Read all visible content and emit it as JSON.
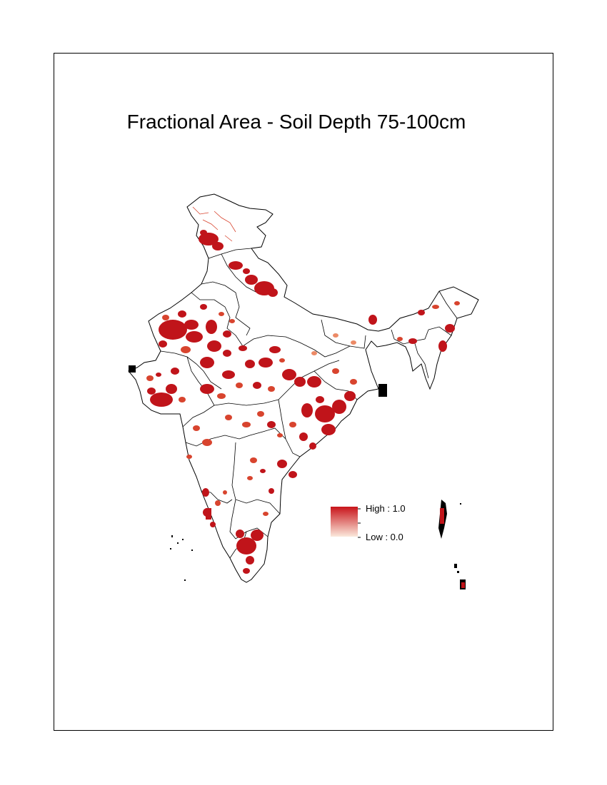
{
  "map": {
    "title": "Fractional Area - Soil Depth 75-100cm"
  },
  "legend": {
    "high_label": "High : 1.0",
    "low_label": "Low : 0.0",
    "high_value": 1.0,
    "low_value": 0.0,
    "high_color": "#c8141a",
    "low_color": "#fbe9dc"
  },
  "colors": {
    "outline": "#000000",
    "fill_dark": "#c0141a",
    "fill_mid": "#d8442e",
    "fill_light": "#ec8a66"
  }
}
